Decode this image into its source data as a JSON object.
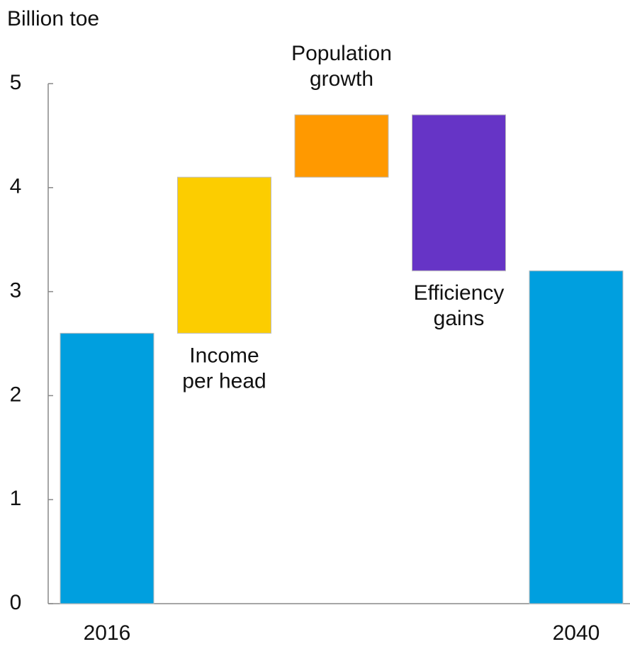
{
  "chart_data": {
    "type": "waterfall",
    "y_axis_label": "Billion toe",
    "categories": [
      "2016",
      "Income per head",
      "Population growth",
      "Efficiency gains",
      "2040"
    ],
    "values": [
      2.6,
      1.5,
      0.6,
      -1.5,
      3.2
    ],
    "is_total": [
      true,
      false,
      false,
      false,
      true
    ],
    "colors": [
      "#009fdf",
      "#fccd00",
      "#ff9900",
      "#6634c6",
      "#009fdf"
    ],
    "ylim": [
      0,
      5
    ],
    "yticks": [
      0,
      1,
      2,
      3,
      4,
      5
    ]
  }
}
